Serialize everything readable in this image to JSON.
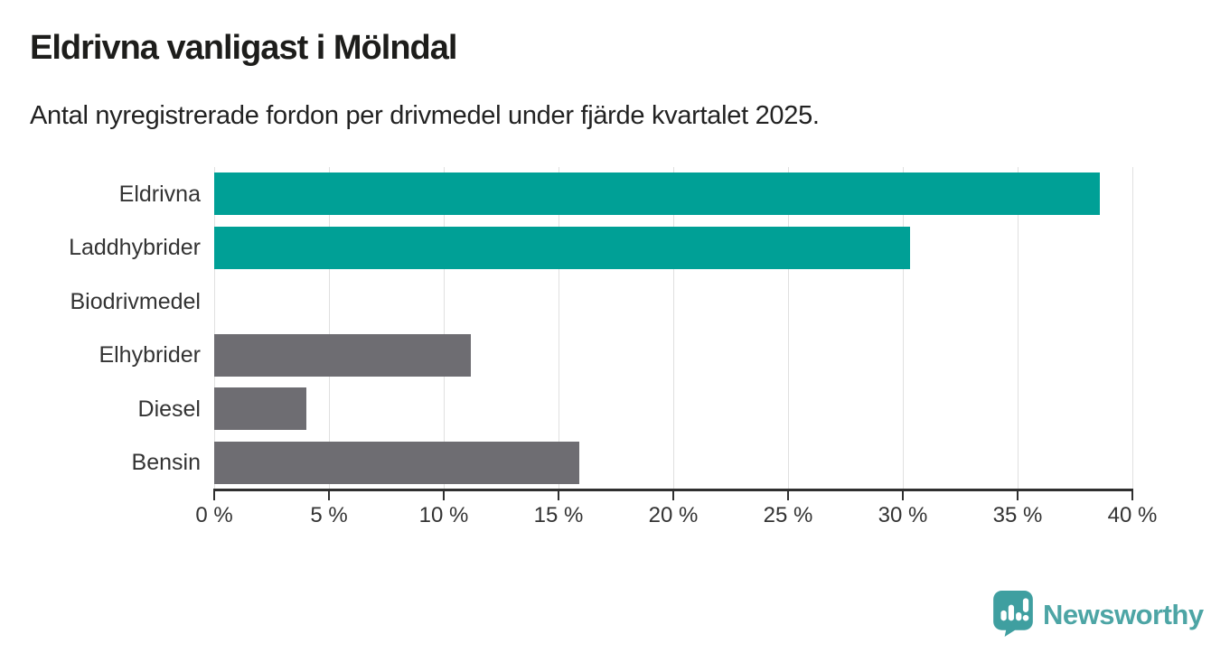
{
  "title": "Eldrivna vanligast i Mölndal",
  "subtitle": "Antal nyregistrerade fordon per drivmedel under fjärde kvartalet 2025.",
  "chart_data": {
    "type": "bar",
    "orientation": "horizontal",
    "title": "Eldrivna vanligast i Mölndal",
    "subtitle": "Antal nyregistrerade fordon per drivmedel under fjärde kvartalet 2025.",
    "categories": [
      "Eldrivna",
      "Laddhybrider",
      "Biodrivmedel",
      "Elhybrider",
      "Diesel",
      "Bensin"
    ],
    "values": [
      38.6,
      30.3,
      0,
      11.2,
      4.0,
      15.9
    ],
    "unit": "%",
    "xlim": [
      0,
      40
    ],
    "x_tick_step": 5,
    "x_tick_labels": [
      "0 %",
      "5 %",
      "10 %",
      "15 %",
      "20 %",
      "25 %",
      "30 %",
      "35 %",
      "40 %"
    ],
    "grid": true,
    "legend": "none",
    "bar_colors": [
      "#00a096",
      "#00a096",
      "#00a096",
      "#6e6d72",
      "#6e6d72",
      "#6e6d72"
    ],
    "highlight_color": "#00a096",
    "default_color": "#6e6d72",
    "gridline_color": "#e0e0e0",
    "axis_color": "#2f2f2f"
  },
  "footer": {
    "brand": "Newsworthy",
    "brand_text_color": "#4da5a5",
    "logo_mark_color": "#3f9fa0",
    "logo_glyph": "bar-chart-exclamation"
  }
}
